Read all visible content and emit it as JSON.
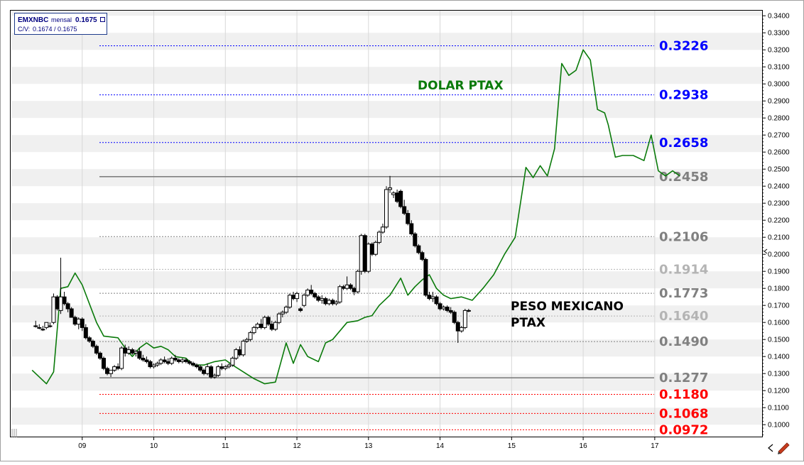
{
  "legend": {
    "symbol": "EMXNBC",
    "period": "mensal",
    "last": "0.1675",
    "cv_label": "C/V:",
    "cv_value": "0.1674 / 0.1675"
  },
  "chart_data": {
    "type": "candlestick",
    "ylim": [
      0.093,
      0.343
    ],
    "y_ticks": [
      "0.3400",
      "0.3300",
      "0.3200",
      "0.3100",
      "0.3000",
      "0.2900",
      "0.2800",
      "0.2700",
      "0.2600",
      "0.2500",
      "0.2400",
      "0.2300",
      "0.2200",
      "0.2100",
      "0.2000",
      "0.1900",
      "0.1800",
      "0.1700",
      "0.1600",
      "0.1500",
      "0.1400",
      "0.1300",
      "0.1200",
      "0.1100",
      "0.1000"
    ],
    "x_ticks": [
      "09",
      "10",
      "11",
      "12",
      "13",
      "14",
      "15",
      "16",
      "17"
    ],
    "grid": "alternating horizontal bands",
    "annotations": [
      {
        "text": "DOLAR PTAX",
        "color": "#0a7a0a"
      },
      {
        "text": "PESO MEXICANO",
        "color": "#000000"
      },
      {
        "text": "PTAX",
        "color": "#000000"
      }
    ],
    "levels": [
      {
        "value": 0.3226,
        "label": "0.3226",
        "color": "#0000ff",
        "style": "dotted"
      },
      {
        "value": 0.2938,
        "label": "0.2938",
        "color": "#0000ff",
        "style": "dotted"
      },
      {
        "value": 0.2658,
        "label": "0.2658",
        "color": "#0000ff",
        "style": "dotted"
      },
      {
        "value": 0.2458,
        "label": "0.2458",
        "color": "#808080",
        "style": "solid"
      },
      {
        "value": 0.2106,
        "label": "0.2106",
        "color": "#808080",
        "style": "dotted"
      },
      {
        "value": 0.1914,
        "label": "0.1914",
        "color": "#b4b4b4",
        "style": "dotted"
      },
      {
        "value": 0.1773,
        "label": "0.1773",
        "color": "#808080",
        "style": "dotted"
      },
      {
        "value": 0.164,
        "label": "0.1640",
        "color": "#b4b4b4",
        "style": "dotted"
      },
      {
        "value": 0.149,
        "label": "0.1490",
        "color": "#808080",
        "style": "dotted"
      },
      {
        "value": 0.1277,
        "label": "0.1277",
        "color": "#808080",
        "style": "solid"
      },
      {
        "value": 0.118,
        "label": "0.1180",
        "color": "#ff0000",
        "style": "dotted"
      },
      {
        "value": 0.1068,
        "label": "0.1068",
        "color": "#ff0000",
        "style": "dotted"
      },
      {
        "value": 0.0972,
        "label": "0.0972",
        "color": "#ff0000",
        "style": "dotted"
      }
    ],
    "series": [
      {
        "kind": "candles",
        "x_start": 8.35,
        "x_step": 0.05,
        "ohlc": [
          [
            0.158,
            0.161,
            0.157,
            0.158
          ],
          [
            0.157,
            0.159,
            0.156,
            0.157
          ],
          [
            0.156,
            0.158,
            0.155,
            0.156
          ],
          [
            0.157,
            0.16,
            0.156,
            0.16
          ],
          [
            0.158,
            0.16,
            0.157,
            0.158
          ],
          [
            0.16,
            0.177,
            0.159,
            0.175
          ],
          [
            0.175,
            0.176,
            0.167,
            0.168
          ],
          [
            0.167,
            0.198,
            0.165,
            0.175
          ],
          [
            0.175,
            0.178,
            0.17,
            0.171
          ],
          [
            0.171,
            0.172,
            0.166,
            0.168
          ],
          [
            0.168,
            0.169,
            0.163,
            0.163
          ],
          [
            0.163,
            0.164,
            0.158,
            0.159
          ],
          [
            0.159,
            0.163,
            0.156,
            0.162
          ],
          [
            0.162,
            0.163,
            0.155,
            0.157
          ],
          [
            0.157,
            0.159,
            0.15,
            0.151
          ],
          [
            0.151,
            0.152,
            0.148,
            0.149
          ],
          [
            0.149,
            0.15,
            0.145,
            0.146
          ],
          [
            0.146,
            0.147,
            0.141,
            0.142
          ],
          [
            0.142,
            0.143,
            0.138,
            0.139
          ],
          [
            0.139,
            0.14,
            0.132,
            0.133
          ],
          [
            0.133,
            0.134,
            0.129,
            0.13
          ],
          [
            0.13,
            0.132,
            0.128,
            0.132
          ],
          [
            0.132,
            0.135,
            0.131,
            0.134
          ],
          [
            0.134,
            0.136,
            0.132,
            0.133
          ],
          [
            0.133,
            0.146,
            0.132,
            0.145
          ],
          [
            0.145,
            0.147,
            0.14,
            0.142
          ],
          [
            0.142,
            0.146,
            0.141,
            0.144
          ],
          [
            0.144,
            0.145,
            0.141,
            0.142
          ],
          [
            0.142,
            0.144,
            0.14,
            0.143
          ],
          [
            0.143,
            0.145,
            0.138,
            0.139
          ],
          [
            0.139,
            0.141,
            0.137,
            0.138
          ],
          [
            0.138,
            0.14,
            0.136,
            0.137
          ],
          [
            0.137,
            0.138,
            0.133,
            0.134
          ],
          [
            0.134,
            0.136,
            0.133,
            0.135
          ],
          [
            0.135,
            0.137,
            0.134,
            0.136
          ],
          [
            0.136,
            0.139,
            0.135,
            0.138
          ],
          [
            0.138,
            0.14,
            0.136,
            0.137
          ],
          [
            0.137,
            0.139,
            0.135,
            0.136
          ],
          [
            0.136,
            0.14,
            0.135,
            0.139
          ],
          [
            0.139,
            0.141,
            0.137,
            0.138
          ],
          [
            0.138,
            0.139,
            0.136,
            0.137
          ],
          [
            0.137,
            0.139,
            0.136,
            0.138
          ],
          [
            0.138,
            0.139,
            0.136,
            0.137
          ],
          [
            0.137,
            0.138,
            0.135,
            0.136
          ],
          [
            0.136,
            0.137,
            0.134,
            0.135
          ],
          [
            0.135,
            0.136,
            0.133,
            0.134
          ],
          [
            0.134,
            0.135,
            0.131,
            0.132
          ],
          [
            0.132,
            0.133,
            0.129,
            0.13
          ],
          [
            0.13,
            0.136,
            0.129,
            0.134
          ],
          [
            0.134,
            0.135,
            0.127,
            0.128
          ],
          [
            0.128,
            0.13,
            0.127,
            0.129
          ],
          [
            0.129,
            0.135,
            0.128,
            0.134
          ],
          [
            0.134,
            0.136,
            0.132,
            0.133
          ],
          [
            0.133,
            0.135,
            0.132,
            0.134
          ],
          [
            0.134,
            0.136,
            0.133,
            0.135
          ],
          [
            0.135,
            0.14,
            0.134,
            0.139
          ],
          [
            0.139,
            0.145,
            0.138,
            0.144
          ],
          [
            0.144,
            0.146,
            0.14,
            0.141
          ],
          [
            0.141,
            0.15,
            0.14,
            0.149
          ],
          [
            0.149,
            0.151,
            0.148,
            0.15
          ],
          [
            0.15,
            0.155,
            0.149,
            0.154
          ],
          [
            0.154,
            0.158,
            0.153,
            0.157
          ],
          [
            0.157,
            0.16,
            0.156,
            0.159
          ],
          [
            0.159,
            0.162,
            0.156,
            0.157
          ],
          [
            0.157,
            0.164,
            0.156,
            0.163
          ],
          [
            0.163,
            0.164,
            0.158,
            0.159
          ],
          [
            0.159,
            0.161,
            0.155,
            0.156
          ],
          [
            0.156,
            0.161,
            0.155,
            0.16
          ],
          [
            0.16,
            0.166,
            0.159,
            0.165
          ],
          [
            0.165,
            0.167,
            0.163,
            0.166
          ],
          [
            0.166,
            0.17,
            0.165,
            0.169
          ],
          [
            0.169,
            0.177,
            0.168,
            0.176
          ],
          [
            0.176,
            0.178,
            0.173,
            0.174
          ],
          [
            0.174,
            0.178,
            0.172,
            0.177
          ],
          [
            0.168,
            0.169,
            0.166,
            0.167
          ],
          [
            0.17,
            0.177,
            0.169,
            0.176
          ],
          [
            0.176,
            0.18,
            0.175,
            0.179
          ],
          [
            0.179,
            0.182,
            0.176,
            0.177
          ],
          [
            0.177,
            0.178,
            0.174,
            0.175
          ],
          [
            0.175,
            0.176,
            0.172,
            0.173
          ],
          [
            0.173,
            0.176,
            0.171,
            0.174
          ],
          [
            0.174,
            0.175,
            0.17,
            0.171
          ],
          [
            0.171,
            0.174,
            0.17,
            0.173
          ],
          [
            0.173,
            0.174,
            0.17,
            0.171
          ],
          [
            0.171,
            0.173,
            0.17,
            0.172
          ],
          [
            0.172,
            0.182,
            0.171,
            0.181
          ],
          [
            0.181,
            0.182,
            0.179,
            0.18
          ],
          [
            0.18,
            0.187,
            0.179,
            0.182
          ],
          [
            0.182,
            0.183,
            0.179,
            0.18
          ],
          [
            0.18,
            0.181,
            0.176,
            0.178
          ],
          [
            0.178,
            0.191,
            0.177,
            0.19
          ],
          [
            0.19,
            0.212,
            0.188,
            0.211
          ],
          [
            0.211,
            0.212,
            0.189,
            0.19
          ],
          [
            0.19,
            0.207,
            0.189,
            0.206
          ],
          [
            0.206,
            0.207,
            0.199,
            0.2
          ],
          [
            0.2,
            0.208,
            0.199,
            0.207
          ],
          [
            0.207,
            0.214,
            0.206,
            0.213
          ],
          [
            0.213,
            0.218,
            0.212,
            0.216
          ],
          [
            0.216,
            0.24,
            0.215,
            0.238
          ],
          [
            0.238,
            0.246,
            0.236,
            0.239
          ],
          [
            0.235,
            0.237,
            0.233,
            0.236
          ],
          [
            0.236,
            0.238,
            0.23,
            0.231
          ],
          [
            0.237,
            0.238,
            0.227,
            0.228
          ],
          [
            0.228,
            0.232,
            0.223,
            0.224
          ],
          [
            0.224,
            0.226,
            0.217,
            0.218
          ],
          [
            0.218,
            0.22,
            0.211,
            0.212
          ],
          [
            0.212,
            0.213,
            0.204,
            0.205
          ],
          [
            0.205,
            0.206,
            0.2,
            0.201
          ],
          [
            0.201,
            0.202,
            0.196,
            0.197
          ],
          [
            0.197,
            0.198,
            0.175,
            0.176
          ],
          [
            0.176,
            0.178,
            0.173,
            0.174
          ],
          [
            0.174,
            0.178,
            0.172,
            0.175
          ],
          [
            0.175,
            0.176,
            0.17,
            0.171
          ],
          [
            0.171,
            0.172,
            0.167,
            0.168
          ],
          [
            0.168,
            0.17,
            0.167,
            0.169
          ],
          [
            0.169,
            0.17,
            0.166,
            0.167
          ],
          [
            0.167,
            0.169,
            0.165,
            0.166
          ],
          [
            0.166,
            0.167,
            0.159,
            0.16
          ],
          [
            0.16,
            0.161,
            0.148,
            0.155
          ],
          [
            0.155,
            0.158,
            0.154,
            0.157
          ],
          [
            0.157,
            0.168,
            0.156,
            0.167
          ],
          [
            0.167,
            0.168,
            0.166,
            0.167
          ]
        ]
      },
      {
        "kind": "line",
        "name": "DOLAR PTAX",
        "color": "#0a7a0a",
        "points": [
          [
            8.3,
            0.132
          ],
          [
            8.5,
            0.124
          ],
          [
            8.6,
            0.131
          ],
          [
            8.7,
            0.18
          ],
          [
            8.8,
            0.181
          ],
          [
            8.9,
            0.189
          ],
          [
            9.0,
            0.182
          ],
          [
            9.2,
            0.16
          ],
          [
            9.3,
            0.152
          ],
          [
            9.5,
            0.151
          ],
          [
            9.6,
            0.145
          ],
          [
            9.7,
            0.14
          ],
          [
            9.8,
            0.145
          ],
          [
            9.9,
            0.148
          ],
          [
            10.0,
            0.145
          ],
          [
            10.1,
            0.146
          ],
          [
            10.2,
            0.144
          ],
          [
            10.3,
            0.14
          ],
          [
            10.45,
            0.139
          ],
          [
            10.55,
            0.135
          ],
          [
            10.7,
            0.135
          ],
          [
            10.85,
            0.137
          ],
          [
            11.0,
            0.138
          ],
          [
            11.1,
            0.135
          ],
          [
            11.25,
            0.131
          ],
          [
            11.4,
            0.127
          ],
          [
            11.55,
            0.124
          ],
          [
            11.7,
            0.125
          ],
          [
            11.85,
            0.148
          ],
          [
            11.95,
            0.136
          ],
          [
            12.05,
            0.147
          ],
          [
            12.15,
            0.14
          ],
          [
            12.3,
            0.137
          ],
          [
            12.4,
            0.148
          ],
          [
            12.5,
            0.15
          ],
          [
            12.6,
            0.155
          ],
          [
            12.7,
            0.16
          ],
          [
            12.85,
            0.161
          ],
          [
            12.95,
            0.163
          ],
          [
            13.05,
            0.164
          ],
          [
            13.15,
            0.17
          ],
          [
            13.3,
            0.176
          ],
          [
            13.45,
            0.186
          ],
          [
            13.55,
            0.176
          ],
          [
            13.65,
            0.181
          ],
          [
            13.75,
            0.185
          ],
          [
            13.85,
            0.188
          ],
          [
            13.95,
            0.18
          ],
          [
            14.05,
            0.176
          ],
          [
            14.15,
            0.174
          ],
          [
            14.3,
            0.175
          ],
          [
            14.45,
            0.173
          ],
          [
            14.6,
            0.18
          ],
          [
            14.75,
            0.188
          ],
          [
            14.9,
            0.2
          ],
          [
            15.05,
            0.21
          ],
          [
            15.2,
            0.251
          ],
          [
            15.3,
            0.245
          ],
          [
            15.4,
            0.252
          ],
          [
            15.5,
            0.246
          ],
          [
            15.6,
            0.262
          ],
          [
            15.7,
            0.312
          ],
          [
            15.8,
            0.305
          ],
          [
            15.9,
            0.308
          ],
          [
            16.0,
            0.32
          ],
          [
            16.1,
            0.314
          ],
          [
            16.2,
            0.285
          ],
          [
            16.3,
            0.283
          ],
          [
            16.35,
            0.276
          ],
          [
            16.45,
            0.257
          ],
          [
            16.55,
            0.258
          ],
          [
            16.7,
            0.258
          ],
          [
            16.85,
            0.255
          ],
          [
            16.95,
            0.27
          ],
          [
            17.05,
            0.249
          ],
          [
            17.15,
            0.246
          ],
          [
            17.25,
            0.249
          ],
          [
            17.35,
            0.246
          ]
        ]
      }
    ]
  }
}
